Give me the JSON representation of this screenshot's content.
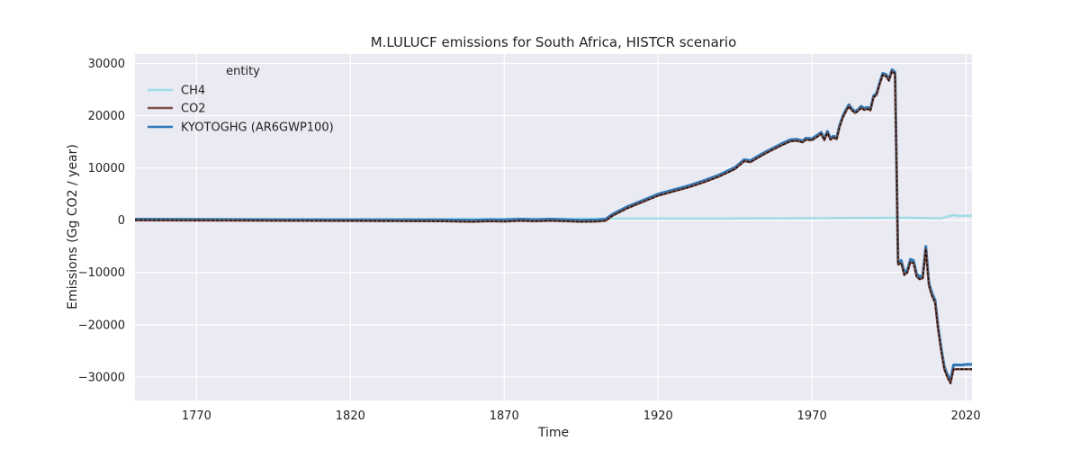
{
  "chart_data": {
    "type": "line",
    "title": "M.LULUCF emissions for South Africa, HISTCR scenario",
    "xlabel": "Time",
    "ylabel": "Emissions (Gg CO2 / year)",
    "xlim": [
      1750,
      2022
    ],
    "ylim": [
      -34500,
      31800
    ],
    "x_ticks": [
      1770,
      1820,
      1870,
      1920,
      1970,
      2020
    ],
    "y_ticks": [
      30000,
      20000,
      10000,
      0,
      -10000,
      -20000,
      -30000
    ],
    "y_tick_labels": [
      "30000",
      "20000",
      "10000",
      "0",
      "−10000",
      "−20000",
      "−30000"
    ],
    "grid": true,
    "legend_title": "entity",
    "legend_position": "top-left",
    "colors": {
      "background": "#eaeaf2",
      "grid": "#ffffff",
      "overlay": "#000000"
    },
    "series": [
      {
        "name": "CH4",
        "color": "#9fdce8",
        "x": [
          1750,
          1800,
          1850,
          1900,
          1920,
          1940,
          1960,
          1980,
          2000,
          2012,
          2014,
          2016,
          2018,
          2020,
          2022
        ],
        "values": [
          200,
          200,
          250,
          300,
          300,
          300,
          350,
          400,
          450,
          350,
          700,
          950,
          800,
          850,
          850
        ]
      },
      {
        "name": "CO2",
        "color": "#7b4f47",
        "x": [
          1750,
          1800,
          1850,
          1860,
          1865,
          1870,
          1875,
          1880,
          1885,
          1890,
          1895,
          1900,
          1903,
          1905,
          1910,
          1915,
          1920,
          1925,
          1930,
          1935,
          1940,
          1945,
          1948,
          1950,
          1952,
          1955,
          1960,
          1963,
          1965,
          1967,
          1968,
          1970,
          1973,
          1974,
          1975,
          1976,
          1977,
          1978,
          1979,
          1980,
          1981,
          1982,
          1983,
          1984,
          1985,
          1986,
          1987,
          1988,
          1989,
          1990,
          1991,
          1992,
          1993,
          1994,
          1995,
          1996,
          1997,
          1998,
          1999,
          2000,
          2001,
          2002,
          2003,
          2004,
          2005,
          2006,
          2007,
          2008,
          2009,
          2010,
          2011,
          2012,
          2013,
          2014,
          2015,
          2016,
          2017,
          2018,
          2019,
          2020,
          2021,
          2022
        ],
        "values": [
          0,
          -100,
          -200,
          -300,
          -200,
          -250,
          -100,
          -200,
          -100,
          -200,
          -300,
          -250,
          -100,
          800,
          2300,
          3500,
          4700,
          5500,
          6300,
          7300,
          8400,
          9800,
          11300,
          11100,
          11800,
          12800,
          14300,
          15100,
          15200,
          14900,
          15400,
          15300,
          16500,
          15300,
          16700,
          15400,
          15800,
          15500,
          17900,
          19600,
          20800,
          21800,
          21000,
          20500,
          20900,
          21500,
          21100,
          21300,
          21000,
          23500,
          24000,
          26000,
          27800,
          27600,
          26700,
          28500,
          28000,
          -8500,
          -8200,
          -10500,
          -10000,
          -8000,
          -8200,
          -10800,
          -11300,
          -11100,
          -5500,
          -12500,
          -14500,
          -15800,
          -21000,
          -25000,
          -28500,
          -30000,
          -31200,
          -28500,
          -28500,
          -28500,
          -28500,
          -28500,
          -28500,
          -28500
        ]
      },
      {
        "name": "KYOTOGHG (AR6GWP100)",
        "color": "#2b77b8",
        "x": [
          1750,
          1800,
          1850,
          1860,
          1865,
          1870,
          1875,
          1880,
          1885,
          1890,
          1895,
          1900,
          1903,
          1905,
          1910,
          1915,
          1920,
          1925,
          1930,
          1935,
          1940,
          1945,
          1948,
          1950,
          1952,
          1955,
          1960,
          1963,
          1965,
          1967,
          1968,
          1970,
          1973,
          1974,
          1975,
          1976,
          1977,
          1978,
          1979,
          1980,
          1981,
          1982,
          1983,
          1984,
          1985,
          1986,
          1987,
          1988,
          1989,
          1990,
          1991,
          1992,
          1993,
          1994,
          1995,
          1996,
          1997,
          1998,
          1999,
          2000,
          2001,
          2002,
          2003,
          2004,
          2005,
          2006,
          2007,
          2008,
          2009,
          2010,
          2011,
          2012,
          2013,
          2014,
          2015,
          2016,
          2017,
          2018,
          2019,
          2020,
          2021,
          2022
        ],
        "values": [
          200,
          100,
          50,
          0,
          100,
          50,
          200,
          100,
          200,
          100,
          0,
          50,
          200,
          1100,
          2600,
          3800,
          5000,
          5800,
          6600,
          7600,
          8700,
          10100,
          11600,
          11400,
          12100,
          13100,
          14600,
          15400,
          15500,
          15200,
          15700,
          15600,
          16800,
          15600,
          17000,
          15700,
          16100,
          15800,
          18200,
          19900,
          21100,
          22100,
          21300,
          20800,
          21200,
          21800,
          21400,
          21600,
          21300,
          23800,
          24300,
          26300,
          28100,
          27900,
          27000,
          28800,
          28300,
          -8000,
          -7700,
          -10000,
          -9500,
          -7500,
          -7700,
          -10300,
          -10800,
          -10600,
          -5000,
          -12000,
          -14000,
          -15300,
          -20500,
          -24500,
          -28000,
          -29500,
          -30700,
          -27700,
          -27700,
          -27700,
          -27700,
          -27600,
          -27600,
          -27600
        ]
      }
    ]
  }
}
